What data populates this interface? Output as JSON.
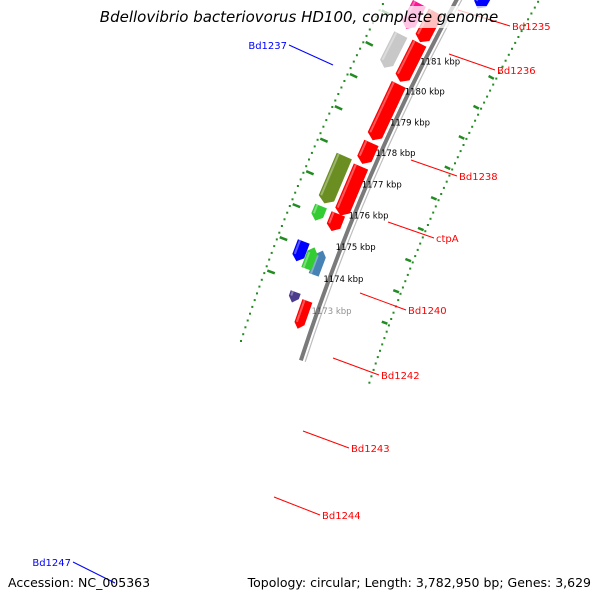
{
  "title": "Bdellovibrio bacteriovorus HD100, complete genome",
  "accession_text": "Accession: NC_005363",
  "summary_text": "Topology: circular; Length: 3,782,950 bp; Genes: 3,629",
  "ticks": [
    {
      "kbp": 1173,
      "label": "1173 kbp"
    },
    {
      "kbp": 1174,
      "label": "1174 kbp"
    },
    {
      "kbp": 1175,
      "label": "1175 kbp"
    },
    {
      "kbp": 1176,
      "label": "1176 kbp"
    },
    {
      "kbp": 1177,
      "label": "1177 kbp"
    },
    {
      "kbp": 1178,
      "label": "1178 kbp"
    },
    {
      "kbp": 1179,
      "label": "1179 kbp"
    },
    {
      "kbp": 1180,
      "label": "1180 kbp"
    },
    {
      "kbp": 1181,
      "label": "1181 kbp"
    }
  ],
  "features": [
    {
      "id": "Bd1235",
      "strand": "forward",
      "color": "#ff0000"
    },
    {
      "id": "Bd1236",
      "strand": "forward",
      "color": "#4b3c8c"
    },
    {
      "id": "Bd1237",
      "strand": "reverse",
      "color": "#4682b4"
    },
    {
      "id": "Bd1237-green",
      "strand": "reverse",
      "color": "#33cc33"
    },
    {
      "id": "Bd1237-blue",
      "strand": "forward",
      "color": "#0000ff"
    },
    {
      "id": "Bd1238",
      "strand": "forward",
      "color": "#33cc33"
    },
    {
      "id": "Bd1238-red",
      "strand": "forward",
      "color": "#ff0000"
    },
    {
      "id": "ctpA",
      "strand": "forward",
      "color": "#6b8e23"
    },
    {
      "id": "ctpA-red",
      "strand": "forward",
      "color": "#ff0000"
    },
    {
      "id": "Bd1240",
      "strand": "forward",
      "color": "#ff0000"
    },
    {
      "id": "Bd1242",
      "strand": "forward",
      "color": "#ff0000"
    },
    {
      "id": "Bd1243",
      "strand": "forward",
      "color": "#c8c8c8"
    },
    {
      "id": "Bd1243-red",
      "strand": "forward",
      "color": "#ff0000"
    },
    {
      "id": "Bd1244",
      "strand": "forward",
      "color": "#ff1493"
    },
    {
      "id": "Bd1244-red",
      "strand": "forward",
      "color": "#ff0000"
    },
    {
      "id": "Bd1247",
      "strand": "forward",
      "color": "#0000ff"
    }
  ],
  "labels": [
    {
      "text": "Bd1235",
      "color": "#ff0000"
    },
    {
      "text": "Bd1236",
      "color": "#ff0000"
    },
    {
      "text": "Bd1237",
      "color": "#0000ff"
    },
    {
      "text": "Bd1238",
      "color": "#ff0000"
    },
    {
      "text": "ctpA",
      "color": "#ff0000"
    },
    {
      "text": "Bd1240",
      "color": "#ff0000"
    },
    {
      "text": "Bd1242",
      "color": "#ff0000"
    },
    {
      "text": "Bd1243",
      "color": "#ff0000"
    },
    {
      "text": "Bd1244",
      "color": "#ff0000"
    },
    {
      "text": "Bd1247",
      "color": "#0000ff"
    }
  ],
  "colors": {
    "backbone": "#7a7a7a",
    "gc_dots": "#228b22",
    "tick": "#228b22"
  }
}
